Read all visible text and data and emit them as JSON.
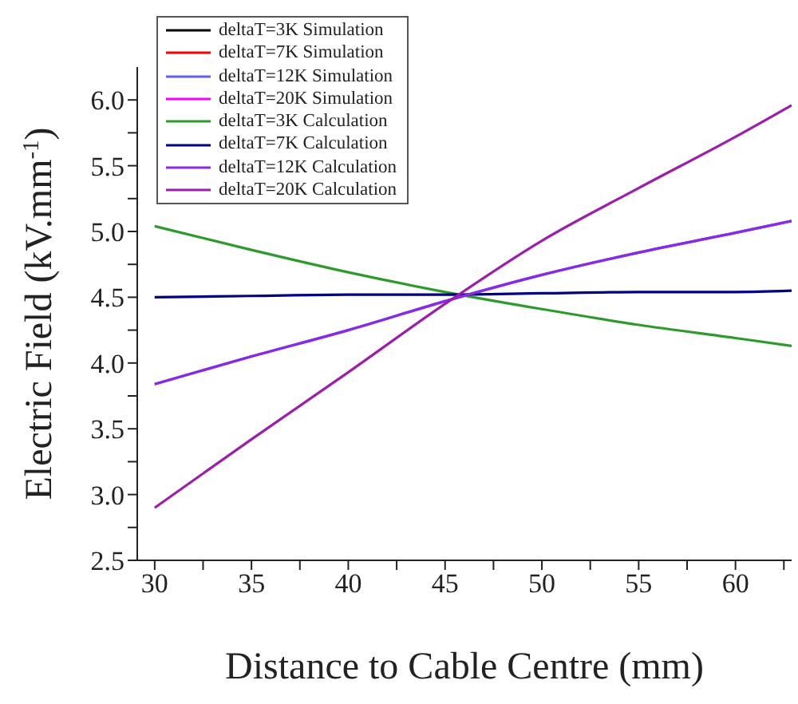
{
  "chart_data": {
    "type": "line",
    "xlabel": "Distance to Cable Centre (mm)",
    "ylabel": "Electric Field (kV.mm$^{-1}$)",
    "x": [
      30,
      35,
      40,
      45,
      50,
      55,
      60,
      62.9
    ],
    "series": [
      {
        "name": "deltaT=3K Simulation",
        "color": "#000000",
        "values": [
          null,
          null,
          null,
          null,
          null,
          null,
          null,
          null
        ]
      },
      {
        "name": "deltaT=7K Simulation",
        "color": "#ff0000",
        "values": [
          null,
          null,
          null,
          null,
          null,
          null,
          null,
          null
        ]
      },
      {
        "name": "deltaT=12K Simulation",
        "color": "#6060ff",
        "values": [
          3.84,
          4.05,
          4.25,
          4.47,
          4.67,
          4.84,
          4.99,
          5.08
        ]
      },
      {
        "name": "deltaT=20K Simulation",
        "color": "#ff00ff",
        "values": [
          null,
          null,
          null,
          null,
          null,
          null,
          null,
          null
        ]
      },
      {
        "name": "deltaT=3K Calculation",
        "color": "#2e9a2e",
        "values": [
          5.04,
          4.86,
          4.69,
          4.54,
          4.41,
          4.29,
          4.19,
          4.13
        ]
      },
      {
        "name": "deltaT=7K Calculation",
        "color": "#000080",
        "values": [
          4.5,
          4.51,
          4.52,
          4.52,
          4.53,
          4.54,
          4.54,
          4.55
        ]
      },
      {
        "name": "deltaT=12K Calculation",
        "color": "#8a2be2",
        "values": [
          3.84,
          4.05,
          4.25,
          4.47,
          4.67,
          4.84,
          4.99,
          5.08
        ]
      },
      {
        "name": "deltaT=20K Calculation",
        "color": "#9b1fa8",
        "values": [
          2.9,
          3.42,
          3.93,
          4.45,
          4.93,
          5.33,
          5.72,
          5.96
        ]
      }
    ],
    "xlim": [
      29.1,
      62.9
    ],
    "xticks": [
      30,
      {
        "value": 32.5,
        "label": null
      },
      35,
      {
        "value": 37.5,
        "label": null
      },
      40,
      {
        "value": 42.5,
        "label": null
      },
      45,
      {
        "value": 47.5,
        "label": null
      },
      50,
      {
        "value": 52.5,
        "label": null
      },
      55,
      {
        "value": 57.5,
        "label": null
      },
      60,
      {
        "value": 62.5,
        "label": null
      }
    ],
    "ylim": [
      2.5,
      6.25
    ],
    "yticks": [
      {
        "value": 2.5,
        "label": "2.5"
      },
      {
        "value": 2.75,
        "label": null
      },
      {
        "value": 3,
        "label": "3.0"
      },
      {
        "value": 3.25,
        "label": null
      },
      {
        "value": 3.5,
        "label": "3.5"
      },
      {
        "value": 3.75,
        "label": null
      },
      {
        "value": 4,
        "label": "4.0"
      },
      {
        "value": 4.25,
        "label": null
      },
      {
        "value": 4.5,
        "label": "4.5"
      },
      {
        "value": 4.75,
        "label": null
      },
      {
        "value": 5,
        "label": "5.0"
      },
      {
        "value": 5.25,
        "label": null
      },
      {
        "value": 5.5,
        "label": "5.5"
      },
      {
        "value": 5.75,
        "label": null
      },
      {
        "value": 6,
        "label": "6.0"
      }
    ],
    "grid": false,
    "legend": "top left",
    "marker": "none",
    "line_style": "solid"
  }
}
